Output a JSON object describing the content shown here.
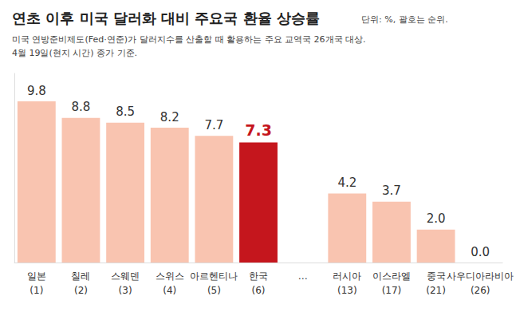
{
  "chart_data": {
    "type": "bar",
    "title": "연초 이후 미국 달러화 대비 주요국 환율 상승률",
    "annotations": [
      "단위: %, 괄호는 순위."
    ],
    "subtitle": [
      "미국 연방준비제도(Fed·연준)가 달러지수를 산출할 때 활용하는 주요 교역국 26개국 대상.",
      "4월 19일(현지 시간) 종가 기준."
    ],
    "categories": [
      "일본\n(1)",
      "칠레\n(2)",
      "스웨덴\n(3)",
      "스위스\n(4)",
      "아르헨티나\n(5)",
      "한국\n(6)",
      "…",
      "러시아\n(13)",
      "이스라엘\n(17)",
      "중국\n(21)",
      "사우디아라비아\n(26)"
    ],
    "values": [
      9.8,
      8.8,
      8.5,
      8.2,
      7.7,
      7.3,
      null,
      4.2,
      3.7,
      2.0,
      0.0
    ],
    "value_labels": [
      "9.8",
      "8.8",
      "8.5",
      "8.2",
      "7.7",
      "7.3",
      null,
      "4.2",
      "3.7",
      "2.0",
      "0.0"
    ],
    "colors": [
      "#f9c4b0",
      "#f9c4b0",
      "#f9c4b0",
      "#f9c4b0",
      "#f9c4b0",
      "#c5161d",
      "#f9c4b0",
      "#f9c4b0",
      "#f9c4b0",
      "#f9c4b0",
      "#f9c4b0"
    ],
    "ylim": [
      0,
      11.5
    ],
    "data_labels": true,
    "tick_labels": "x",
    "grid": false
  }
}
